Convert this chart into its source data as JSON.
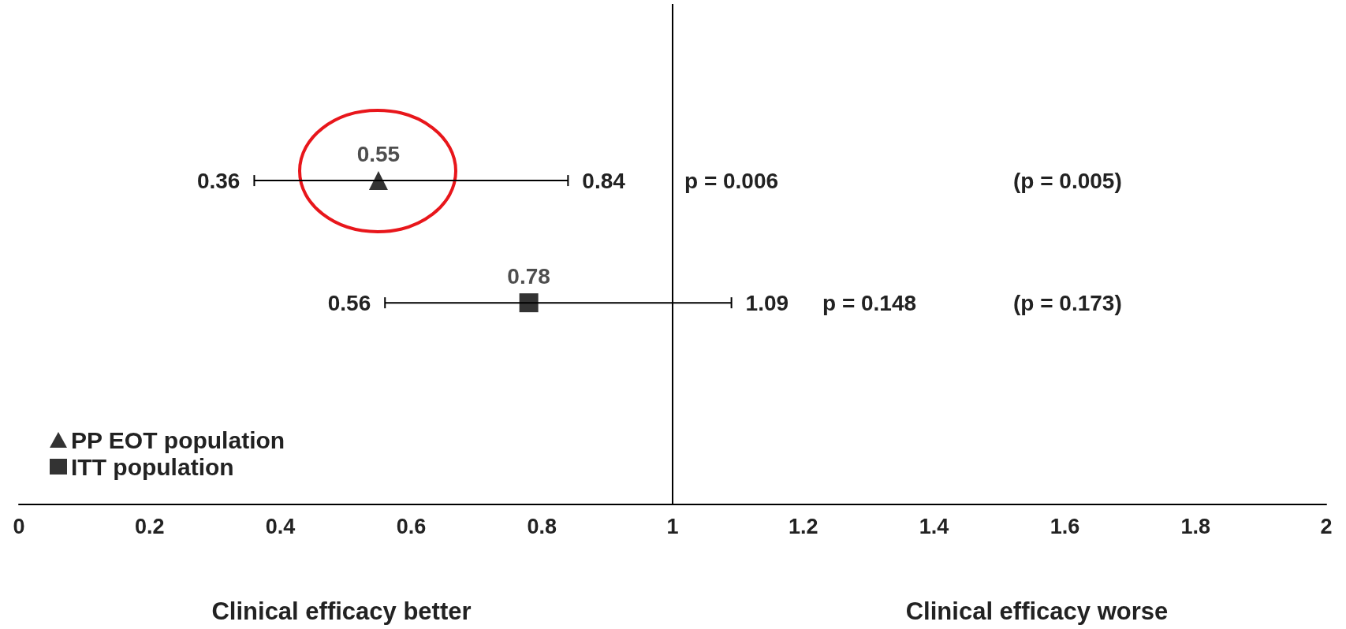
{
  "chart_data": {
    "type": "scatter",
    "orientation": "horizontal",
    "categories": [
      null,
      null
    ],
    "series": [
      {
        "name": "PP EOT population",
        "color": "#000000",
        "marker": "triangle",
        "values": [
          0.55,
          null
        ],
        "errors": [
          [
            0.36,
            0.84
          ],
          null
        ]
      },
      {
        "name": "ITT population",
        "color": "#000000",
        "marker": "square",
        "values": [
          null,
          0.78
        ],
        "errors": [
          null,
          [
            0.56,
            1.09
          ]
        ]
      }
    ],
    "xlim": [
      0,
      2
    ],
    "xticks": [
      0,
      0.2,
      0.4,
      0.6,
      0.8,
      1,
      1.2,
      1.4,
      1.6,
      1.8,
      2
    ],
    "ref_lines": [
      {
        "axis": "x",
        "value": 1,
        "color": "#000000"
      }
    ],
    "annotations": [
      "p = 0.006",
      "(p = 0.005)",
      "p = 0.148",
      "(p = 0.173)",
      "Clinical efficacy better",
      "Clinical efficacy worse",
      "0.36",
      "0.84",
      "0.56",
      "1.09"
    ],
    "data_labels": true,
    "legend": "bottom left",
    "grid": false
  }
}
